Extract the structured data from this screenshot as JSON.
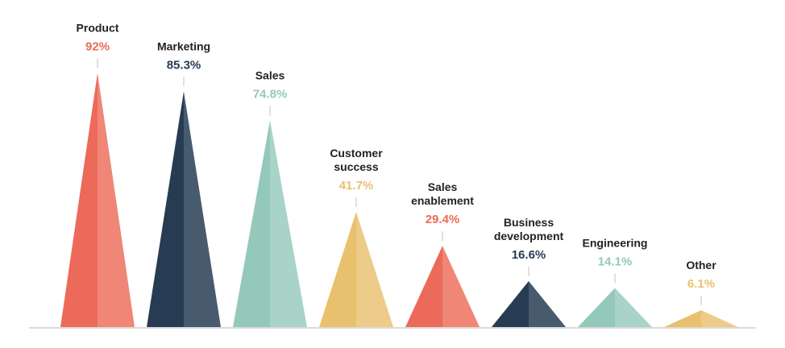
{
  "chart_data": {
    "type": "bar",
    "title": "",
    "xlabel": "",
    "ylabel": "",
    "ylim": [
      0,
      100
    ],
    "grid": false,
    "legend": "none",
    "categories": [
      "Product",
      "Marketing",
      "Sales",
      "Customer success",
      "Sales enablement",
      "Business development",
      "Engineering",
      "Other"
    ],
    "label_lines": [
      [
        "Product"
      ],
      [
        "Marketing"
      ],
      [
        "Sales"
      ],
      [
        "Customer",
        "success"
      ],
      [
        "Sales",
        "enablement"
      ],
      [
        "Business",
        "development"
      ],
      [
        "Engineering"
      ],
      [
        "Other"
      ]
    ],
    "values": [
      92,
      85.3,
      74.8,
      41.7,
      29.4,
      16.6,
      14.1,
      6.1
    ],
    "value_labels": [
      "92%",
      "85.3%",
      "74.8%",
      "41.7%",
      "29.4%",
      "16.6%",
      "14.1%",
      "6.1%"
    ],
    "colors": [
      "#EC6A5A",
      "#273B52",
      "#94C8BA",
      "#E9C06D",
      "#EC6A5A",
      "#273B52",
      "#94C8BA",
      "#E9C06D"
    ],
    "light_colors": [
      "#F08676",
      "#475A6E",
      "#A9D3C8",
      "#EDCC89",
      "#F08676",
      "#475A6E",
      "#A9D3C8",
      "#EDCC89"
    ]
  }
}
